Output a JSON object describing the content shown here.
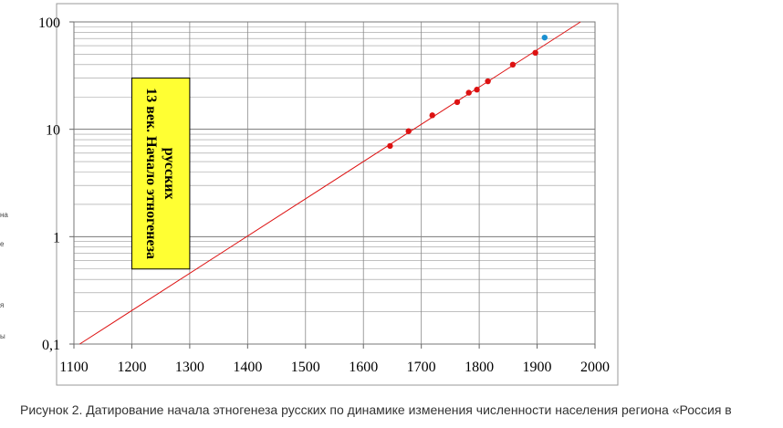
{
  "chart_data": {
    "type": "scatter",
    "title": "",
    "xlabel": "",
    "ylabel": "",
    "xlim": [
      1100,
      2000
    ],
    "ylim": [
      0.1,
      100
    ],
    "y_scale": "log",
    "x_ticks": [
      "1100",
      "1200",
      "1300",
      "1400",
      "1500",
      "1600",
      "1700",
      "1800",
      "1900",
      "2000"
    ],
    "y_ticks": [
      "0,1",
      "1",
      "10",
      "100"
    ],
    "grid": "horizontal log gridlines and vertical gridlines",
    "series": [
      {
        "color": "#dd1111",
        "marker": "dot",
        "points": [
          {
            "x": 1646,
            "y": 7.0
          },
          {
            "x": 1678,
            "y": 9.6
          },
          {
            "x": 1719,
            "y": 13.5
          },
          {
            "x": 1762,
            "y": 17.9
          },
          {
            "x": 1782,
            "y": 21.9
          },
          {
            "x": 1796,
            "y": 23.4
          },
          {
            "x": 1815,
            "y": 28.0
          },
          {
            "x": 1858,
            "y": 40.0
          },
          {
            "x": 1897,
            "y": 51.6
          }
        ]
      },
      {
        "color": "#1a8fd0",
        "marker": "dot",
        "points": [
          {
            "x": 1913,
            "y": 71.5
          }
        ]
      }
    ],
    "trend_line": {
      "color": "#dd1111",
      "points": [
        [
          1110,
          0.1
        ],
        [
          1975,
          100
        ]
      ]
    },
    "annotation": {
      "text_line1": "13 век. Начало этногенеза",
      "text_line2": "русских",
      "x_range": [
        1200,
        1300
      ],
      "y_range": [
        0.5,
        30
      ],
      "fill": "#ffff33"
    }
  },
  "caption": "Рисунок 2. Датирование начала этногенеза русских по динамике изменения численности населения региона «Россия в",
  "edge_fragments": [
    "на",
    "е",
    "я",
    "ы"
  ]
}
